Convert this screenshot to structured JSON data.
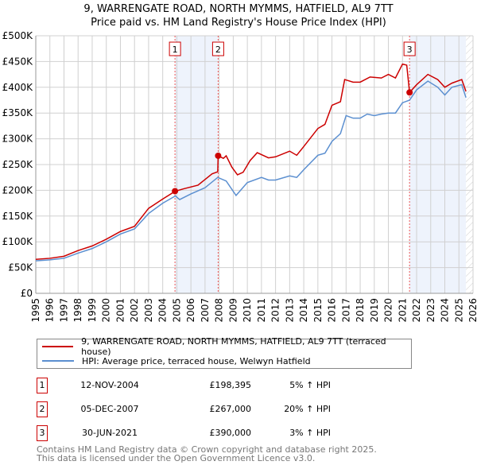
{
  "title": "9, WARRENGATE ROAD, NORTH MYMMS, HATFIELD, AL9 7TT",
  "subtitle": "Price paid vs. HM Land Registry's House Price Index (HPI)",
  "chart_data": {
    "type": "line",
    "xlim": [
      1995,
      2026
    ],
    "ylim": [
      0,
      500000
    ],
    "yticks": [
      {
        "v": 0,
        "l": "£0"
      },
      {
        "v": 50000,
        "l": "£50K"
      },
      {
        "v": 100000,
        "l": "£100K"
      },
      {
        "v": 150000,
        "l": "£150K"
      },
      {
        "v": 200000,
        "l": "£200K"
      },
      {
        "v": 250000,
        "l": "£250K"
      },
      {
        "v": 300000,
        "l": "£300K"
      },
      {
        "v": 350000,
        "l": "£350K"
      },
      {
        "v": 400000,
        "l": "£400K"
      },
      {
        "v": 450000,
        "l": "£450K"
      },
      {
        "v": 500000,
        "l": "£500K"
      }
    ],
    "xticks": [
      "1995",
      "1996",
      "1997",
      "1998",
      "1999",
      "2000",
      "2001",
      "2002",
      "2003",
      "2004",
      "2005",
      "2006",
      "2007",
      "2008",
      "2009",
      "2010",
      "2011",
      "2012",
      "2013",
      "2014",
      "2015",
      "2016",
      "2017",
      "2018",
      "2019",
      "2020",
      "2021",
      "2022",
      "2023",
      "2024",
      "2025",
      "2026"
    ],
    "series": [
      {
        "name": "9, WARRENGATE ROAD, NORTH MYMMS, HATFIELD, AL9 7TT (terraced house)",
        "color": "#cc0000",
        "points": [
          [
            1995,
            66
          ],
          [
            1996,
            68
          ],
          [
            1997,
            72
          ],
          [
            1998,
            83
          ],
          [
            1999,
            92
          ],
          [
            2000,
            105
          ],
          [
            2001,
            120
          ],
          [
            2002,
            130
          ],
          [
            2003,
            165
          ],
          [
            2004,
            183
          ],
          [
            2004.87,
            198
          ],
          [
            2005.5,
            203
          ],
          [
            2006.5,
            210
          ],
          [
            2007.5,
            232
          ],
          [
            2007.9,
            236
          ],
          [
            2007.93,
            267
          ],
          [
            2008.3,
            262
          ],
          [
            2008.5,
            267
          ],
          [
            2008.9,
            245
          ],
          [
            2009.3,
            230
          ],
          [
            2009.7,
            235
          ],
          [
            2010.2,
            258
          ],
          [
            2010.7,
            273
          ],
          [
            2011.5,
            263
          ],
          [
            2012,
            265
          ],
          [
            2013,
            276
          ],
          [
            2013.5,
            268
          ],
          [
            2014,
            285
          ],
          [
            2015,
            320
          ],
          [
            2015.5,
            328
          ],
          [
            2016,
            365
          ],
          [
            2016.6,
            372
          ],
          [
            2016.9,
            415
          ],
          [
            2017.5,
            410
          ],
          [
            2018,
            410
          ],
          [
            2018.7,
            420
          ],
          [
            2019.5,
            418
          ],
          [
            2020,
            425
          ],
          [
            2020.5,
            418
          ],
          [
            2021,
            445
          ],
          [
            2021.3,
            443
          ],
          [
            2021.5,
            390
          ],
          [
            2022,
            405
          ],
          [
            2022.8,
            425
          ],
          [
            2023.5,
            415
          ],
          [
            2024,
            400
          ],
          [
            2024.5,
            408
          ],
          [
            2025.2,
            415
          ],
          [
            2025.5,
            392
          ]
        ]
      },
      {
        "name": "HPI: Average price, terraced house, Welwyn Hatfield",
        "color": "#5b8fd0",
        "points": [
          [
            1995,
            63
          ],
          [
            1996,
            65
          ],
          [
            1997,
            68
          ],
          [
            1998,
            78
          ],
          [
            1999,
            87
          ],
          [
            2000,
            100
          ],
          [
            2001,
            115
          ],
          [
            2002,
            125
          ],
          [
            2003,
            155
          ],
          [
            2004,
            175
          ],
          [
            2004.9,
            189
          ],
          [
            2005.2,
            182
          ],
          [
            2006,
            193
          ],
          [
            2007,
            205
          ],
          [
            2007.9,
            225
          ],
          [
            2008.5,
            218
          ],
          [
            2009.2,
            190
          ],
          [
            2010,
            215
          ],
          [
            2011,
            225
          ],
          [
            2011.5,
            220
          ],
          [
            2012,
            220
          ],
          [
            2013,
            228
          ],
          [
            2013.5,
            225
          ],
          [
            2014,
            240
          ],
          [
            2015,
            268
          ],
          [
            2015.5,
            272
          ],
          [
            2016,
            295
          ],
          [
            2016.6,
            310
          ],
          [
            2017,
            345
          ],
          [
            2017.5,
            340
          ],
          [
            2018,
            340
          ],
          [
            2018.5,
            348
          ],
          [
            2019,
            345
          ],
          [
            2019.5,
            348
          ],
          [
            2020,
            350
          ],
          [
            2020.5,
            350
          ],
          [
            2021,
            370
          ],
          [
            2021.5,
            375
          ],
          [
            2022,
            395
          ],
          [
            2022.8,
            412
          ],
          [
            2023.5,
            400
          ],
          [
            2024,
            385
          ],
          [
            2024.5,
            400
          ],
          [
            2025.2,
            405
          ],
          [
            2025.5,
            380
          ]
        ]
      }
    ],
    "sales": [
      {
        "n": "1",
        "x": 2004.87,
        "y": 198395
      },
      {
        "n": "2",
        "x": 2007.93,
        "y": 267000
      },
      {
        "n": "3",
        "x": 2021.5,
        "y": 390000
      }
    ],
    "shaded": [
      [
        2004.87,
        2007.93
      ],
      [
        2021.5,
        2025.5
      ]
    ]
  },
  "legend": {
    "red": "9, WARRENGATE ROAD, NORTH MYMMS, HATFIELD, AL9 7TT (terraced house)",
    "blue": "HPI: Average price, terraced house, Welwyn Hatfield"
  },
  "transactions": [
    {
      "n": "1",
      "date": "12-NOV-2004",
      "price": "£198,395",
      "hpi": "5% ↑ HPI"
    },
    {
      "n": "2",
      "date": "05-DEC-2007",
      "price": "£267,000",
      "hpi": "20% ↑ HPI"
    },
    {
      "n": "3",
      "date": "30-JUN-2021",
      "price": "£390,000",
      "hpi": "3% ↑ HPI"
    }
  ],
  "footer": {
    "line1": "Contains HM Land Registry data © Crown copyright and database right 2025.",
    "line2": "This data is licensed under the Open Government Licence v3.0."
  }
}
